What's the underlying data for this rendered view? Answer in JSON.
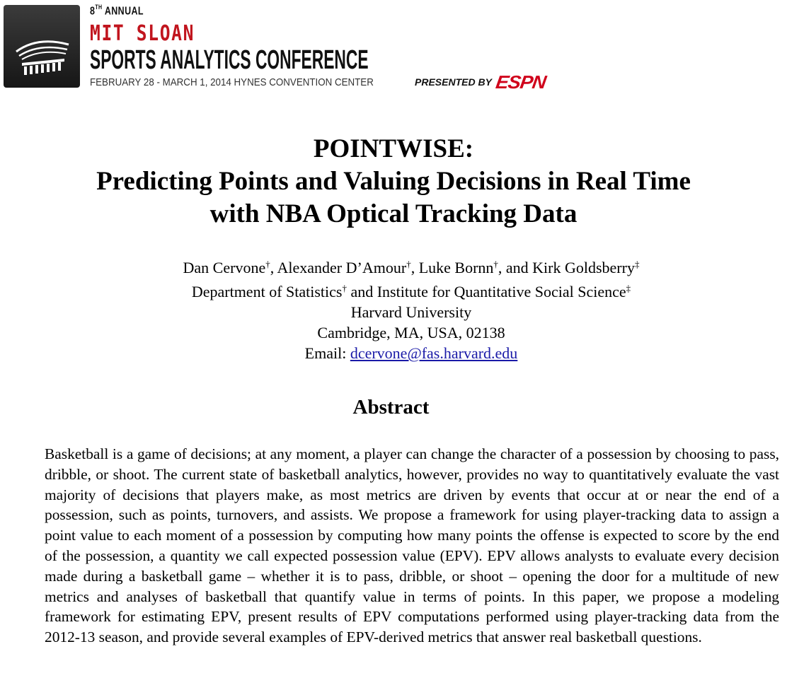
{
  "header": {
    "annual_number": "8",
    "annual_suffix": "TH",
    "annual_word": "ANNUAL",
    "org": "MIT SLOAN",
    "conference": "SPORTS ANALYTICS CONFERENCE",
    "dates_venue": "FEBRUARY 28 - MARCH 1, 2014 HYNES CONVENTION CENTER",
    "presented_by": "PRESENTED BY",
    "sponsor": "ESPN",
    "colors": {
      "red": "#c1151e",
      "espn_red": "#d0021b",
      "logo_bg": "#222222"
    },
    "logo_icon": "stadium-icon"
  },
  "paper": {
    "title_lines": [
      "POINTWISE:",
      "Predicting Points and Valuing Decisions in Real Time",
      "with NBA Optical Tracking Data"
    ],
    "authors": [
      {
        "name": "Dan Cervone",
        "mark": "†",
        "sep": ", "
      },
      {
        "name": "Alexander D’Amour",
        "mark": "†",
        "sep": ", "
      },
      {
        "name": "Luke Bornn",
        "mark": "†",
        "sep": ", and "
      },
      {
        "name": "Kirk Goldsberry",
        "mark": "‡",
        "sep": ""
      }
    ],
    "affiliation": {
      "part1": "Department of Statistics",
      "mark1": "†",
      "joiner": " and Institute for Quantitative Social Science",
      "mark2": "‡"
    },
    "university": "Harvard University",
    "address": "Cambridge, MA, USA, 02138",
    "email_label": "Email: ",
    "email": "dcervone@fas.harvard.edu",
    "abstract_heading": "Abstract",
    "abstract_text": "Basketball is a game of decisions; at any moment, a player can change the character of a possession by choosing to pass, dribble, or shoot. The current state of basketball analytics, however, provides no way to quantitatively evaluate the vast majority of decisions that players make, as most metrics are driven by events that occur at or near the end of a possession, such as points, turnovers, and assists. We propose a framework for using player-tracking data to assign a point value to each moment of a possession by computing how many points the offense is expected to score by the end of the possession, a quantity we call expected possession value (EPV). EPV allows analysts to evaluate every decision made during a basketball game – whether it is to pass, dribble, or shoot – opening the door for a multitude of new metrics and analyses of basketball that quantify value in terms of points. In this paper, we propose a modeling framework for estimating EPV, present results of EPV computations performed using player-tracking data from the 2012-13 season, and provide several examples of EPV-derived metrics that answer real basketball questions."
  }
}
